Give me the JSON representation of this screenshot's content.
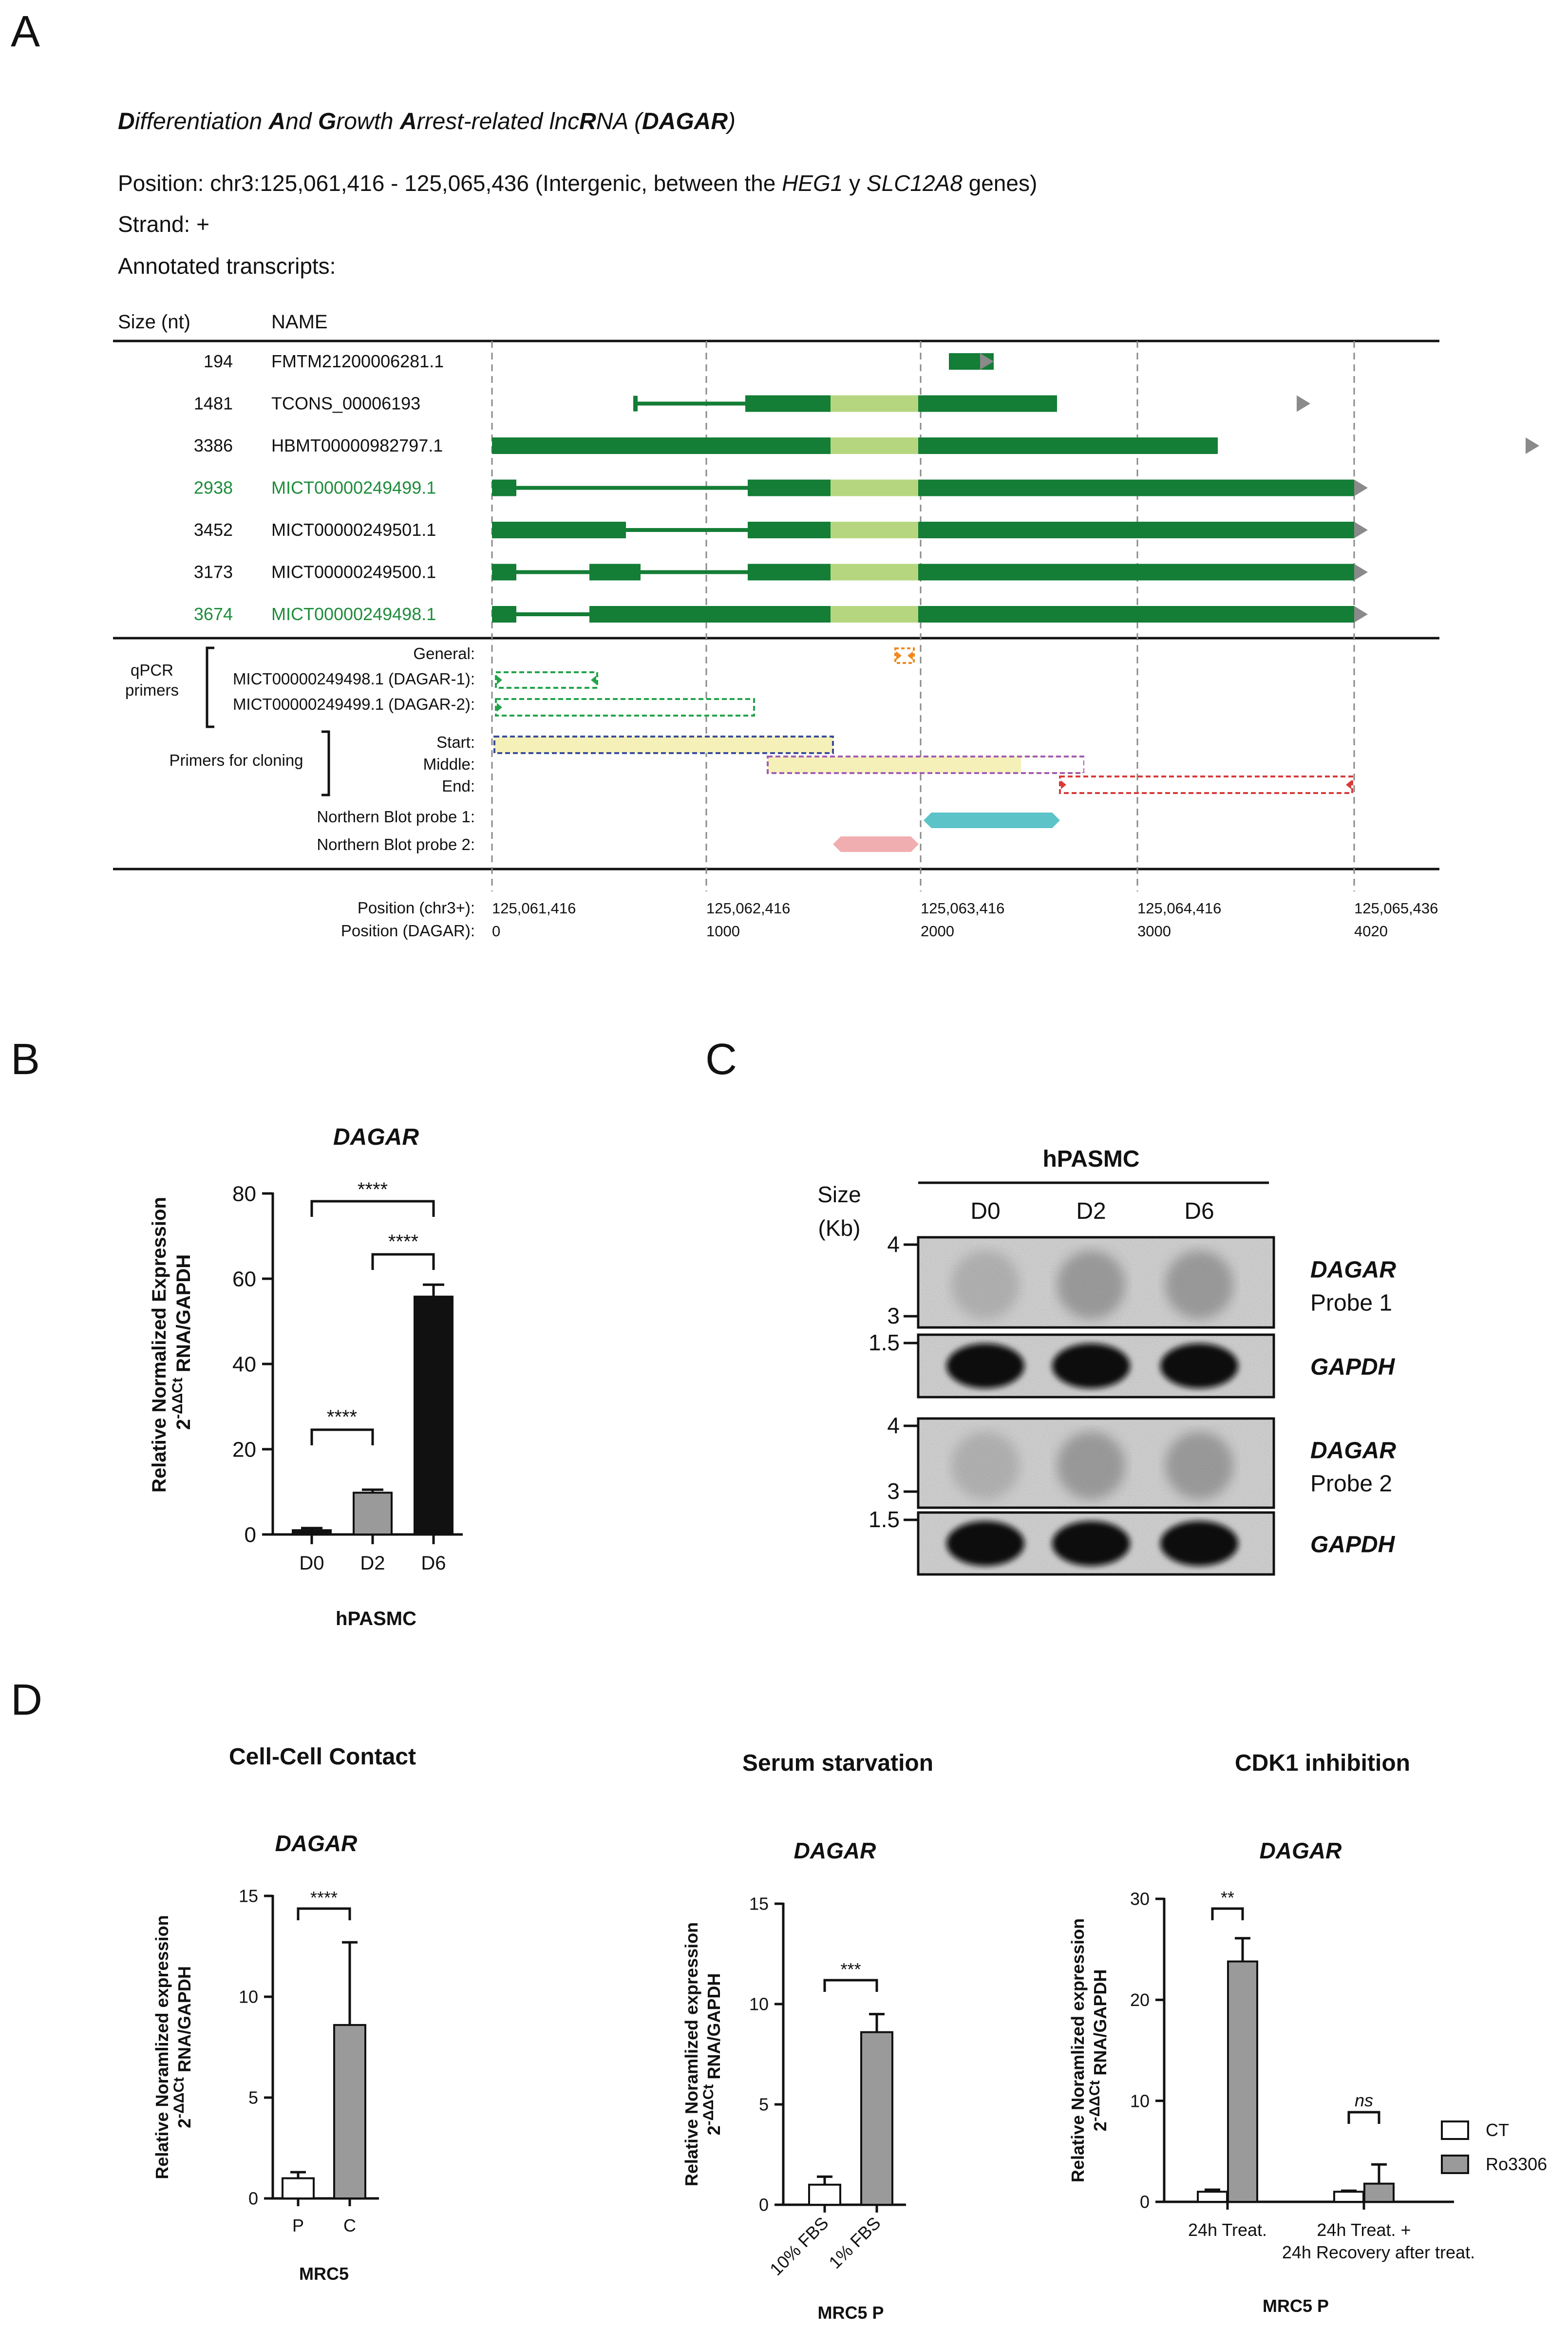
{
  "panels": {
    "a": "A",
    "b": "B",
    "c": "C",
    "d": "D"
  },
  "panel_a": {
    "title_parts": [
      {
        "text": "D",
        "b": true
      },
      {
        "text": "ifferentiation ",
        "b": false
      },
      {
        "text": "A",
        "b": true
      },
      {
        "text": "nd ",
        "b": false
      },
      {
        "text": "G",
        "b": true
      },
      {
        "text": "rowth ",
        "b": false
      },
      {
        "text": "A",
        "b": true
      },
      {
        "text": "rrest-related lnc",
        "b": false
      },
      {
        "text": "R",
        "b": true
      },
      {
        "text": "NA (",
        "b": false
      },
      {
        "text": "DAGAR",
        "b": true
      },
      {
        "text": ")",
        "b": false
      }
    ],
    "position_prefix": "Position: chr3:125,061,416 - 125,065,436 (Intergenic, between the ",
    "gene1": "HEG1",
    "position_mid": " y ",
    "gene2": "SLC12A8",
    "position_suffix": " genes)",
    "strand": "Strand: +",
    "annotated": "Annotated transcripts:",
    "col_size": "Size (nt)",
    "col_name": "NAME",
    "transcripts": [
      {
        "size": "194",
        "name": "FMTM21200006281.1",
        "highlight": false,
        "arrow_end": 2040,
        "thin": [],
        "thick": [
          [
            1948,
            2040
          ]
        ],
        "light": []
      },
      {
        "size": "1481",
        "name": "TCONS_00006193",
        "highlight": false,
        "arrow_end": 2690,
        "thin": [
          [
            1305,
            1535
          ]
        ],
        "thick": [
          [
            1530,
            1705
          ],
          [
            1885,
            2170
          ]
        ],
        "light": [
          [
            1705,
            1885
          ]
        ]
      },
      {
        "size": "3386",
        "name": "HBMT00000982797.1",
        "highlight": false,
        "arrow_end": 3160,
        "thin": [],
        "thick": [
          [
            1010,
            1705
          ],
          [
            1885,
            2500
          ]
        ],
        "light": [
          [
            1705,
            1885
          ]
        ]
      },
      {
        "size": "2938",
        "name": "MICT00000249499.1",
        "highlight": true,
        "arrow_end": 2808,
        "thin": [
          [
            1060,
            1535
          ]
        ],
        "thick": [
          [
            1010,
            1060
          ],
          [
            1535,
            1705
          ],
          [
            1885,
            2780
          ]
        ],
        "light": [
          [
            1705,
            1885
          ]
        ]
      },
      {
        "size": "3452",
        "name": "MICT00000249501.1",
        "highlight": false,
        "arrow_end": 2808,
        "thin": [
          [
            1285,
            1535
          ]
        ],
        "thick": [
          [
            1010,
            1285
          ],
          [
            1535,
            1705
          ],
          [
            1885,
            2780
          ]
        ],
        "light": [
          [
            1705,
            1885
          ]
        ]
      },
      {
        "size": "3173",
        "name": "MICT00000249500.1",
        "highlight": false,
        "arrow_end": 2808,
        "thin": [
          [
            1060,
            1210
          ],
          [
            1315,
            1535
          ]
        ],
        "thick": [
          [
            1010,
            1060
          ],
          [
            1210,
            1315
          ],
          [
            1535,
            1705
          ],
          [
            1885,
            2780
          ]
        ],
        "light": [
          [
            1705,
            1885
          ]
        ]
      },
      {
        "size": "3674",
        "name": "MICT00000249498.1",
        "highlight": true,
        "arrow_end": 2808,
        "thin": [
          [
            1060,
            1210
          ]
        ],
        "thick": [
          [
            1010,
            1060
          ],
          [
            1210,
            1705
          ],
          [
            1885,
            2780
          ]
        ],
        "light": [
          [
            1705,
            1885
          ]
        ]
      }
    ],
    "qpcr_label_1": "qPCR",
    "qpcr_label_2": "primers",
    "qpcr_rows": [
      {
        "label": "General:"
      },
      {
        "label": "MICT00000249498.1 (DAGAR-1):"
      },
      {
        "label": "MICT00000249499.1 (DAGAR-2):"
      }
    ],
    "cloning_label": "Primers for cloning",
    "cloning_rows": [
      {
        "label": "Start:"
      },
      {
        "label": "Middle:"
      },
      {
        "label": "End:"
      }
    ],
    "probe_rows": [
      {
        "label": "Northern Blot probe 1:"
      },
      {
        "label": "Northern Blot probe 2:"
      }
    ],
    "pos_label_chr": "Position (chr3+):",
    "pos_label_dagar": "Position (DAGAR):",
    "positions": [
      {
        "chr": "125,061,416",
        "dagar": "0"
      },
      {
        "chr": "125,062,416",
        "dagar": "1000"
      },
      {
        "chr": "125,063,416",
        "dagar": "2000"
      },
      {
        "chr": "125,064,416",
        "dagar": "3000"
      },
      {
        "chr": "125,065,436",
        "dagar": "4020"
      }
    ],
    "colors": {
      "exon": "#147d36",
      "overlap": "#b5d67f",
      "arrow": "#8a8a8a",
      "general": "#ee8a1f",
      "qpcr": "#22a34a",
      "cloning_fill": "#f4f0b8",
      "start": "#3a4c9a",
      "middle": "#a35bb5",
      "end": "#d83a3a",
      "probe1": "#5cc3c8",
      "probe2": "#f1aeb0"
    }
  },
  "chart_data": [
    {
      "id": "B",
      "type": "bar",
      "title": "DAGAR",
      "ylabel": "Relative Normalized Expression 2-ΔΔCt RNA/GAPDH",
      "xlabel": "hPASMC",
      "ylim": [
        0,
        80
      ],
      "yticks": [
        "0",
        "20",
        "40",
        "60",
        "80"
      ],
      "categories": [
        "D0",
        "D2",
        "D6"
      ],
      "values": [
        1,
        9.8,
        55.8
      ],
      "errors": [
        0.5,
        0.7,
        2.8
      ],
      "colors": [
        "#111111",
        "#9a9a9a",
        "#111111"
      ],
      "significance": [
        {
          "label": "****",
          "pair": "D0–D6"
        },
        {
          "label": "****",
          "pair": "D2–D6"
        },
        {
          "label": "****",
          "pair": "D0–D2"
        }
      ]
    },
    {
      "id": "D1",
      "type": "bar",
      "heading": "Cell-Cell Contact",
      "title": "DAGAR",
      "ylabel": "Relative Noramlized expression 2-ΔΔCt RNA/GAPDH",
      "xlabel": "MRC5",
      "ylim": [
        0,
        15
      ],
      "yticks": [
        "0",
        "5",
        "10",
        "15"
      ],
      "categories": [
        "P",
        "C"
      ],
      "values": [
        1,
        8.6
      ],
      "errors": [
        0.3,
        4.1
      ],
      "colors": [
        "#ffffff",
        "#9a9a9a"
      ],
      "significance": [
        {
          "label": "****",
          "pair": "P–C"
        }
      ]
    },
    {
      "id": "D2",
      "type": "bar",
      "heading": "Serum starvation",
      "title": "DAGAR",
      "ylabel": "Relative Noramlized expression 2-ΔΔCt RNA/GAPDH",
      "xlabel": "MRC5 P",
      "ylim": [
        0,
        15
      ],
      "yticks": [
        "0",
        "5",
        "10",
        "15"
      ],
      "categories": [
        "10% FBS",
        "1% FBS"
      ],
      "values": [
        1,
        8.6
      ],
      "errors": [
        0.4,
        0.9
      ],
      "colors": [
        "#ffffff",
        "#9a9a9a"
      ],
      "significance": [
        {
          "label": "***",
          "pair": "10% FBS–1% FBS"
        }
      ]
    },
    {
      "id": "D3",
      "type": "bar",
      "heading": "CDK1 inhibition",
      "title": "DAGAR",
      "ylabel": "Relative Noramlized expression 2-ΔΔCt RNA/GAPDH",
      "xlabel": "MRC5 P",
      "ylim": [
        0,
        30
      ],
      "yticks": [
        "0",
        "10",
        "20",
        "30"
      ],
      "groups": [
        "24h Treat.",
        "24h Treat. +",
        "24h Recovery after treat."
      ],
      "series": [
        {
          "name": "CT",
          "values": [
            1,
            1
          ],
          "errors": [
            0.2,
            0.1
          ],
          "color": "#ffffff"
        },
        {
          "name": "Ro3306",
          "values": [
            23.8,
            1.8
          ],
          "errors": [
            2.3,
            1.9
          ],
          "color": "#9a9a9a"
        }
      ],
      "significance": [
        {
          "label": "**",
          "group": "24h Treat."
        },
        {
          "label": "ns",
          "group": "24h Treat. + 24h Recovery after treat."
        }
      ],
      "legend": "right"
    }
  ],
  "panel_c": {
    "header": "hPASMC",
    "size_label": "Size",
    "kb_label": "(Kb)",
    "lanes": [
      "D0",
      "D2",
      "D6"
    ],
    "blots": [
      {
        "gene": "DAGAR",
        "probe": "Probe 1",
        "markers": [
          "4",
          "3"
        ]
      },
      {
        "gene": "GAPDH",
        "probe": "",
        "markers": [
          "1.5"
        ]
      },
      {
        "gene": "DAGAR",
        "probe": "Probe 2",
        "markers": [
          "4",
          "3"
        ]
      },
      {
        "gene": "GAPDH",
        "probe": "",
        "markers": [
          "1.5"
        ]
      }
    ]
  }
}
